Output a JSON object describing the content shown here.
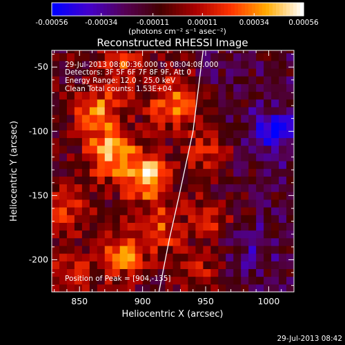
{
  "colorbar": {
    "tick_labels": [
      "-0.00056",
      "-0.00034",
      "-0.00011",
      "0.00011",
      "0.00034",
      "0.00056"
    ],
    "range": [
      -0.00056,
      0.00056
    ],
    "units_label": "(photons cm⁻² s⁻¹ asec⁻²)",
    "stops": [
      "#0000ff",
      "#4400cc",
      "#550055",
      "#440000",
      "#aa0000",
      "#ff3300",
      "#ffaa00",
      "#ffffff"
    ]
  },
  "chart_data": {
    "type": "heatmap",
    "title": "Reconstructed RHESSI Image",
    "xlabel": "Heliocentric X (arcsec)",
    "ylabel": "Heliocentric Y (arcsec)",
    "xlim": [
      828,
      1020
    ],
    "ylim": [
      -225,
      -37
    ],
    "x_ticks": [
      850,
      900,
      950,
      1000
    ],
    "y_ticks": [
      -50,
      -100,
      -150,
      -200
    ],
    "annotations": [
      "29-Jul-2013 08:00:36.000 to 08:04:08.000",
      "Detectors: 3F 5F 6F 7F 8F 9F, Att 0",
      "Energy Range: 12.0 - 25.0 keV",
      "Clean     Total counts: 1.53E+04"
    ],
    "peak_label": "Position of Peak = [904,-135]",
    "peak": [
      904,
      -135
    ],
    "limb_curve": [
      [
        948,
        -37
      ],
      [
        940,
        -100
      ],
      [
        929,
        -150
      ],
      [
        921,
        -185
      ],
      [
        913,
        -225
      ]
    ],
    "sources": [
      {
        "x": 903,
        "y": -135,
        "amp": 1.0
      },
      {
        "x": 875,
        "y": -117,
        "amp": 0.85
      },
      {
        "x": 925,
        "y": -78,
        "amp": 0.75
      },
      {
        "x": 865,
        "y": -85,
        "amp": 0.7
      },
      {
        "x": 885,
        "y": -195,
        "amp": 0.7
      },
      {
        "x": 915,
        "y": -175,
        "amp": 0.55
      },
      {
        "x": 840,
        "y": -160,
        "amp": 0.5
      },
      {
        "x": 845,
        "y": -215,
        "amp": 0.45
      },
      {
        "x": 960,
        "y": -165,
        "amp": 0.4
      },
      {
        "x": 955,
        "y": -115,
        "amp": 0.45
      },
      {
        "x": 945,
        "y": -210,
        "amp": 0.3
      },
      {
        "x": 885,
        "y": -50,
        "amp": 0.5
      },
      {
        "x": 1005,
        "y": -100,
        "amp": -0.6
      },
      {
        "x": 990,
        "y": -190,
        "amp": -0.25
      }
    ]
  },
  "footer": {
    "timestamp": "29-Jul-2013 08:42"
  }
}
